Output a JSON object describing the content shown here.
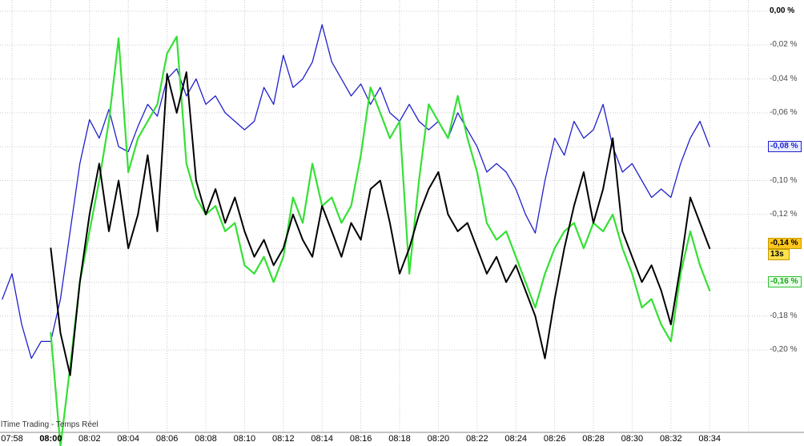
{
  "footer": {
    "watermark": "lTime Trading - Temps Réel"
  },
  "colors": {
    "background": "#ffffff",
    "grid": "#c9c9c9",
    "series_blue": "#2020cc",
    "series_green": "#35e035",
    "series_black": "#000000",
    "label_yellow_bg": "#ffc61e",
    "label_yellow_sub_bg": "#ffe14d"
  },
  "chart_data": {
    "type": "line",
    "title": "",
    "x_tick_minutes": 2,
    "t_step": 0.5,
    "t_unit": "minutes from 07:58",
    "grid": true,
    "ylim": [
      -0.21,
      0.0
    ],
    "y_tick_step": 0.02,
    "x_axis": [
      {
        "label": "07:58"
      },
      {
        "label": "08:00",
        "bold": true
      },
      {
        "label": "08:02"
      },
      {
        "label": "08:04"
      },
      {
        "label": "08:06"
      },
      {
        "label": "08:08"
      },
      {
        "label": "08:10"
      },
      {
        "label": "08:12"
      },
      {
        "label": "08:14"
      },
      {
        "label": "08:16"
      },
      {
        "label": "08:18"
      },
      {
        "label": "08:20"
      },
      {
        "label": "08:22"
      },
      {
        "label": "08:24"
      },
      {
        "label": "08:26"
      },
      {
        "label": "08:28"
      },
      {
        "label": "08:30"
      },
      {
        "label": "08:32"
      },
      {
        "label": "08:34"
      }
    ],
    "y_axis": [
      {
        "label": "0,00 %",
        "style": "bold"
      },
      {
        "label": "-0,02 %"
      },
      {
        "label": "-0,04 %"
      },
      {
        "label": "-0,06 %"
      },
      {
        "label": "-0,08 %",
        "style": "blue"
      },
      {
        "label": "-0,10 %"
      },
      {
        "label": "-0,12 %"
      },
      {
        "label": "-0,14 %",
        "style": "yellow",
        "sub": "13s"
      },
      {
        "label": "-0,16 %",
        "style": "green"
      },
      {
        "label": "-0,18 %"
      },
      {
        "label": "-0,20 %"
      }
    ],
    "series": [
      {
        "name": "index-blue",
        "color": "#2020cc",
        "t_start": -0.5,
        "values": [
          -0.17,
          -0.155,
          -0.185,
          -0.205,
          -0.195,
          -0.195,
          -0.17,
          -0.13,
          -0.09,
          -0.064,
          -0.075,
          -0.058,
          -0.08,
          -0.083,
          -0.068,
          -0.055,
          -0.062,
          -0.04,
          -0.034,
          -0.05,
          -0.04,
          -0.055,
          -0.05,
          -0.06,
          -0.065,
          -0.07,
          -0.065,
          -0.045,
          -0.055,
          -0.026,
          -0.045,
          -0.04,
          -0.03,
          -0.008,
          -0.03,
          -0.04,
          -0.05,
          -0.043,
          -0.055,
          -0.045,
          -0.06,
          -0.065,
          -0.055,
          -0.065,
          -0.07,
          -0.065,
          -0.075,
          -0.06,
          -0.07,
          -0.08,
          -0.095,
          -0.09,
          -0.095,
          -0.105,
          -0.12,
          -0.131,
          -0.1,
          -0.075,
          -0.085,
          -0.065,
          -0.075,
          -0.07,
          -0.055,
          -0.08,
          -0.095,
          -0.09,
          -0.1,
          -0.11,
          -0.105,
          -0.11,
          -0.09,
          -0.075,
          -0.065,
          -0.08
        ]
      },
      {
        "name": "instrument-green",
        "color": "#35e035",
        "t_start": 2,
        "values": [
          -0.19,
          -0.257,
          -0.21,
          -0.16,
          -0.13,
          -0.1,
          -0.065,
          -0.016,
          -0.095,
          -0.075,
          -0.065,
          -0.055,
          -0.025,
          -0.015,
          -0.09,
          -0.11,
          -0.12,
          -0.115,
          -0.13,
          -0.125,
          -0.15,
          -0.155,
          -0.145,
          -0.16,
          -0.145,
          -0.11,
          -0.125,
          -0.09,
          -0.115,
          -0.11,
          -0.125,
          -0.115,
          -0.085,
          -0.045,
          -0.06,
          -0.075,
          -0.065,
          -0.155,
          -0.1,
          -0.055,
          -0.065,
          -0.075,
          -0.05,
          -0.075,
          -0.095,
          -0.125,
          -0.135,
          -0.13,
          -0.145,
          -0.16,
          -0.175,
          -0.155,
          -0.14,
          -0.13,
          -0.125,
          -0.14,
          -0.125,
          -0.13,
          -0.12,
          -0.14,
          -0.155,
          -0.175,
          -0.17,
          -0.185,
          -0.195,
          -0.155,
          -0.13,
          -0.15,
          -0.165
        ]
      },
      {
        "name": "instrument-black",
        "color": "#000000",
        "t_start": 2,
        "values": [
          -0.14,
          -0.19,
          -0.215,
          -0.16,
          -0.12,
          -0.09,
          -0.13,
          -0.1,
          -0.14,
          -0.12,
          -0.085,
          -0.13,
          -0.037,
          -0.06,
          -0.036,
          -0.1,
          -0.12,
          -0.105,
          -0.125,
          -0.11,
          -0.13,
          -0.145,
          -0.135,
          -0.15,
          -0.14,
          -0.12,
          -0.135,
          -0.145,
          -0.115,
          -0.13,
          -0.145,
          -0.125,
          -0.135,
          -0.105,
          -0.1,
          -0.125,
          -0.155,
          -0.14,
          -0.12,
          -0.105,
          -0.095,
          -0.12,
          -0.13,
          -0.125,
          -0.14,
          -0.155,
          -0.145,
          -0.16,
          -0.15,
          -0.165,
          -0.18,
          -0.205,
          -0.17,
          -0.14,
          -0.115,
          -0.095,
          -0.125,
          -0.105,
          -0.075,
          -0.13,
          -0.145,
          -0.16,
          -0.15,
          -0.165,
          -0.185,
          -0.15,
          -0.11,
          -0.125,
          -0.14
        ]
      }
    ],
    "last_values": [
      {
        "series": "index-blue",
        "label": "-0,08 %"
      },
      {
        "series": "instrument-black",
        "label": "-0,14 %",
        "countdown": "13s"
      },
      {
        "series": "instrument-green",
        "label": "-0,16 %"
      }
    ]
  }
}
